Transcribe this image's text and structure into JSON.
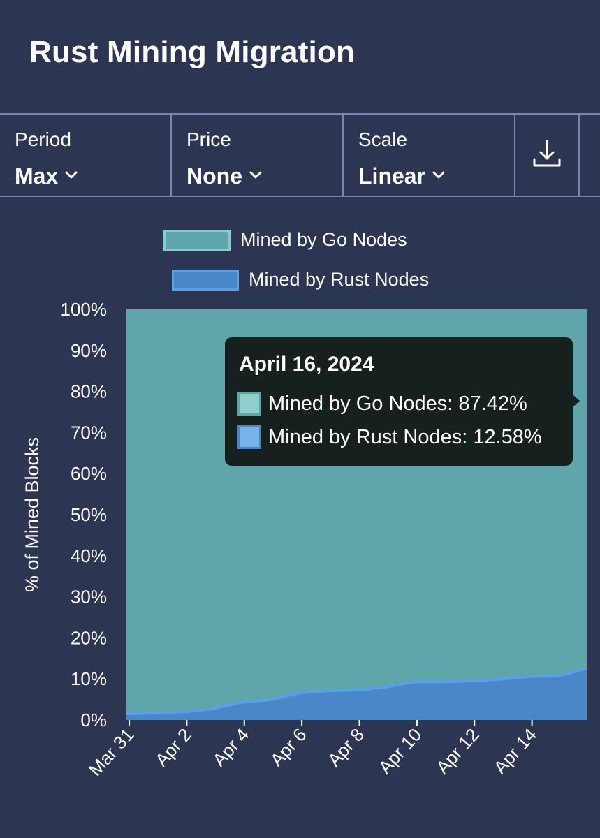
{
  "header": {
    "title": "Rust Mining Migration"
  },
  "toolbar": {
    "period": {
      "label": "Period",
      "value": "Max"
    },
    "price": {
      "label": "Price",
      "value": "None"
    },
    "scale": {
      "label": "Scale",
      "value": "Linear"
    },
    "download_icon": "download-icon"
  },
  "colors": {
    "background": "#2c3552",
    "go": "#5fa5aa",
    "go_border": "#7fcfcc",
    "rust": "#4a86c8",
    "rust_line": "#5aa0e6",
    "divider": "#7b85b3",
    "tooltip_bg": "#15201f"
  },
  "legend": [
    {
      "label": "Mined by Go Nodes"
    },
    {
      "label": "Mined by Rust Nodes"
    }
  ],
  "tooltip": {
    "date": "April 16, 2024",
    "rows": [
      {
        "text": "Mined by Go Nodes: 87.42%"
      },
      {
        "text": "Mined by Rust Nodes: 12.58%"
      }
    ]
  },
  "chart_data": {
    "type": "area",
    "stacked": true,
    "ylabel": "% of Mined Blocks",
    "ylim": [
      0,
      100
    ],
    "y_ticks": [
      "0%",
      "10%",
      "20%",
      "30%",
      "40%",
      "50%",
      "60%",
      "70%",
      "80%",
      "90%",
      "100%"
    ],
    "x_ticks": [
      "Mar 31",
      "Apr 2",
      "Apr 4",
      "Apr 6",
      "Apr 8",
      "Apr 10",
      "Apr 12",
      "Apr 14"
    ],
    "x": [
      "Mar 31",
      "Apr 1",
      "Apr 2",
      "Apr 3",
      "Apr 4",
      "Apr 5",
      "Apr 6",
      "Apr 7",
      "Apr 8",
      "Apr 9",
      "Apr 10",
      "Apr 11",
      "Apr 12",
      "Apr 13",
      "Apr 14",
      "Apr 15",
      "Apr 16"
    ],
    "series": [
      {
        "name": "Mined by Rust Nodes",
        "values": [
          1.5,
          1.7,
          2.0,
          2.7,
          4.3,
          4.9,
          6.6,
          7.1,
          7.3,
          8.0,
          9.3,
          9.3,
          9.5,
          9.9,
          10.6,
          10.7,
          12.58
        ]
      },
      {
        "name": "Mined by Go Nodes",
        "values": [
          98.5,
          98.3,
          98.0,
          97.3,
          95.7,
          95.1,
          93.4,
          92.9,
          92.7,
          92.0,
          90.7,
          90.7,
          90.5,
          90.1,
          89.4,
          89.3,
          87.42
        ]
      }
    ],
    "legend_position": "top"
  }
}
